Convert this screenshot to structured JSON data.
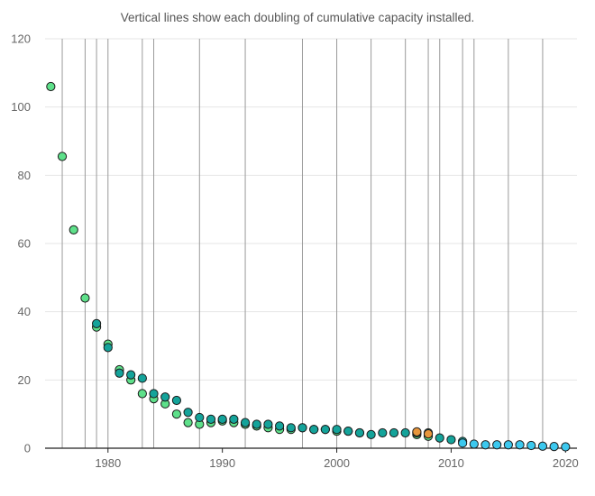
{
  "chart_data": {
    "type": "scatter",
    "subtitle": "Vertical lines show each doubling of cumulative capacity installed.",
    "xlim": [
      1974.5,
      2021
    ],
    "ylim": [
      0,
      120
    ],
    "x_ticks": [
      1980,
      1990,
      2000,
      2010,
      2020
    ],
    "y_ticks": [
      0,
      20,
      40,
      60,
      80,
      100,
      120
    ],
    "gridlines": "horizontal",
    "doubling_lines_x": [
      1976,
      1978,
      1979,
      1980,
      1983,
      1984,
      1988,
      1992,
      1997,
      2000,
      2003,
      2006,
      2008,
      2009,
      2011,
      2012,
      2015,
      2018
    ],
    "colors": {
      "green": "#5EE08A",
      "teal": "#14A39A",
      "blue": "#3CC8EE",
      "orange": "#E8963C",
      "grid": "#e6e6e6",
      "vline": "#9a9a9a"
    },
    "series": [
      {
        "name": "series-green",
        "color": "#5EE08A",
        "points": [
          [
            1975,
            106
          ],
          [
            1976,
            85.5
          ],
          [
            1977,
            64
          ],
          [
            1978,
            44
          ],
          [
            1979,
            35.5
          ],
          [
            1980,
            30.5
          ],
          [
            1981,
            23
          ],
          [
            1982,
            20
          ],
          [
            1983,
            16
          ],
          [
            1984,
            14.5
          ],
          [
            1985,
            13
          ],
          [
            1986,
            10
          ],
          [
            1987,
            7.5
          ],
          [
            1988,
            7
          ],
          [
            1989,
            7.5
          ],
          [
            1990,
            8
          ],
          [
            1991,
            7.5
          ],
          [
            1992,
            7
          ],
          [
            1993,
            6.5
          ],
          [
            1994,
            6
          ],
          [
            1995,
            5.5
          ],
          [
            1996,
            5.5
          ],
          [
            1997,
            6
          ],
          [
            1998,
            5.5
          ],
          [
            1999,
            5.5
          ],
          [
            2000,
            5
          ],
          [
            2001,
            5
          ],
          [
            2002,
            4.5
          ],
          [
            2007,
            4
          ],
          [
            2008,
            3.5
          ]
        ]
      },
      {
        "name": "series-teal",
        "color": "#14A39A",
        "points": [
          [
            1979,
            36.5
          ],
          [
            1980,
            29.5
          ],
          [
            1981,
            22
          ],
          [
            1982,
            21.5
          ],
          [
            1983,
            20.5
          ],
          [
            1984,
            16
          ],
          [
            1985,
            15
          ],
          [
            1986,
            14
          ],
          [
            1987,
            10.5
          ],
          [
            1988,
            9
          ],
          [
            1989,
            8.5
          ],
          [
            1990,
            8.5
          ],
          [
            1991,
            8.5
          ],
          [
            1992,
            7.5
          ],
          [
            1993,
            7
          ],
          [
            1994,
            7
          ],
          [
            1995,
            6.5
          ],
          [
            1996,
            6
          ],
          [
            1997,
            6
          ],
          [
            1998,
            5.5
          ],
          [
            1999,
            5.5
          ],
          [
            2000,
            5.5
          ],
          [
            2001,
            5
          ],
          [
            2002,
            4.5
          ],
          [
            2003,
            4
          ],
          [
            2004,
            4.5
          ],
          [
            2005,
            4.5
          ],
          [
            2006,
            4.5
          ],
          [
            2007,
            4.5
          ],
          [
            2008,
            4.5
          ],
          [
            2009,
            3
          ],
          [
            2010,
            2.5
          ],
          [
            2011,
            2
          ]
        ]
      },
      {
        "name": "series-orange",
        "color": "#E8963C",
        "points": [
          [
            2007,
            4.8
          ],
          [
            2008,
            4.2
          ]
        ]
      },
      {
        "name": "series-blue",
        "color": "#3CC8EE",
        "points": [
          [
            2011,
            1.5
          ],
          [
            2012,
            1.2
          ],
          [
            2013,
            1
          ],
          [
            2014,
            1
          ],
          [
            2015,
            1
          ],
          [
            2016,
            1
          ],
          [
            2017,
            0.8
          ],
          [
            2018,
            0.6
          ],
          [
            2019,
            0.5
          ],
          [
            2020,
            0.4
          ]
        ]
      }
    ]
  }
}
